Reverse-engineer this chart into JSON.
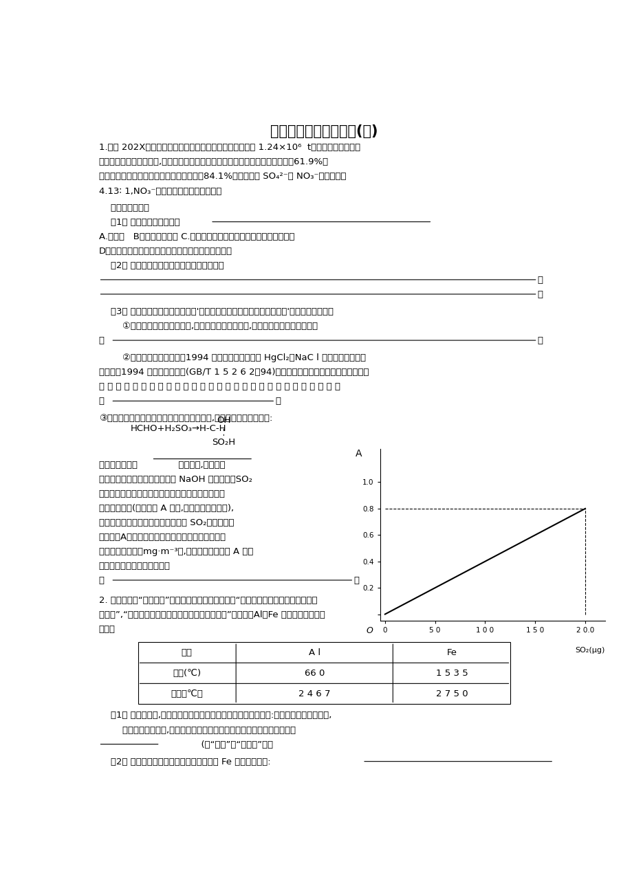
{
  "title": "高三化学探究试题训练(三)",
  "bg_color": "#ffffff",
  "figsize": [
    9.2,
    13.02
  ],
  "dpi": 100,
  "p1_lines": [
    "1.某省 202X年工业（主要是热电厂）二氧化硫排放总量为 1.24×10⁶  t，全省酸雨污染比较",
    "严重。分析降雨成分发现,雨水中阴离子仍以硫酸根离子为主，约占阴离子总量的61.9%，",
    "阳离子以鉃根离子为主，约占阳离子总量的84.1%。阴离子中 SO₄²⁻和 NO₃⁻的质量比为",
    "4.13∶ 1,NO₃⁻的比例呈明显上升的趋势。"
  ],
  "q0": "    回答下列问题：",
  "q1_pre": "    （1） 该省大气污染特征是",
  "q1_opts_a": "A.煤烟型   B．机动车尾气型 C.由煤烟型向煤烟型与机动车尾气混合型转化",
  "q1_opts_d": "D．由机动车尾气型向煤烟型与机动车尾气混合型转化",
  "q2_pre": "    （2） 请你提出该省防治酸雨的两条主要措施",
  "q3_head": "    （3） 某校研究性学习小组拟选择'不同地点空气中二氧化硫的含量分析'的课题进行探究。",
  "q3_1_a": "        ①如果你参加该课题的探究,在小组讨论测定地点时,你建议选择的测定地点分别",
  "q3_1_b": "是",
  "q3_2_lines": [
    "        ②通过查阅资料后发现，1994 年以前，人们常采用 HgCl₂、NaC l 的混合溶液吸收二",
    "氧化硫，1994 年国家颌布标准(GB/T 1 5 2 6 2－94)规定用甲醉溶液吸收二氧化硫。变更吸",
    "收 剂 的 原 因 除 了 用 甲 醉 溶 液 的 吸 收 效 果 比 较 好 外 ， 另 一 个 原 因 可 能"
  ],
  "q3_2_b": "是",
  "q3_3_head": "③甲醉溶液吸收二氧化硫以后发生了如下反应,生成稳定的羟基甲磺酸:",
  "reaction_left": "HCHO+H₂SO₃→H-C-H",
  "reaction_oh": "OH",
  "reaction_so2h": "SO₂H",
  "q3_3b_lines": [
    "该反应类型属于              。测定时,只需向吸",
    "收空气的甲醉吸收液中加入适量 NaOH 和指示剂，SO₂",
    "与指示剂、甲醉反应生成可溶性紫红色化合物，根据",
    "溶液颜色深浅(用吸光度 A 表示,可由仪器进行测量),",
    "就能确定二氧化硫的含量。实验测得 SO₂含量与溶液",
    "的吸光度A的关系如右图所示。若欲测定某地空气中",
    "二氧化硫的含量（mg·m⁻³）,除需要测定吸光度 A 外还",
    "需　要　记　录　的　数　据"
  ],
  "q3_3b_last": "为",
  "graph_xtick_labels": [
    "0",
    "5 0",
    "1 0 0",
    "1 5 0",
    "2 0.0"
  ],
  "graph_ytick_labels": [
    "",
    "0.2",
    "0.4",
    "0.6",
    "0.8",
    "1.0"
  ],
  "p2_lines": [
    "2. 某教科书对“铝热反应”实验的现象有这样的描述：“反应放出大量的热，并发出耀眼",
    "的光芒”,“纸漏斗的下部被烧穿，有融融物落入沙中”。已知：Al、Fe 的燕点、沸点数据",
    "如下："
  ],
  "table_headers": [
    "物质",
    "A l",
    "Fe"
  ],
  "table_row1": [
    "燕点(℃)",
    "66 0",
    "1 5 3 5"
  ],
  "table_row2": [
    "沸点（℃）",
    "2 4 6 7",
    "2 7 5 0"
  ],
  "q_p2_1_lines": [
    "    （1） 某同学猜测,铝热反应所得到的融融物是鐵铝合金。理由是:该反应放热能使鐵燕化,",
    "        而铝的燕点比鐵低,所以鐵和铝能形成合金。你认为他的解释是否合理？"
  ],
  "q_p2_1_fill": "              (填“合理”或“不合理”）。",
  "q_p2_2": "    （2） 根据已有知识找出一种验证产物中有 Fe 的最简单方法:"
}
